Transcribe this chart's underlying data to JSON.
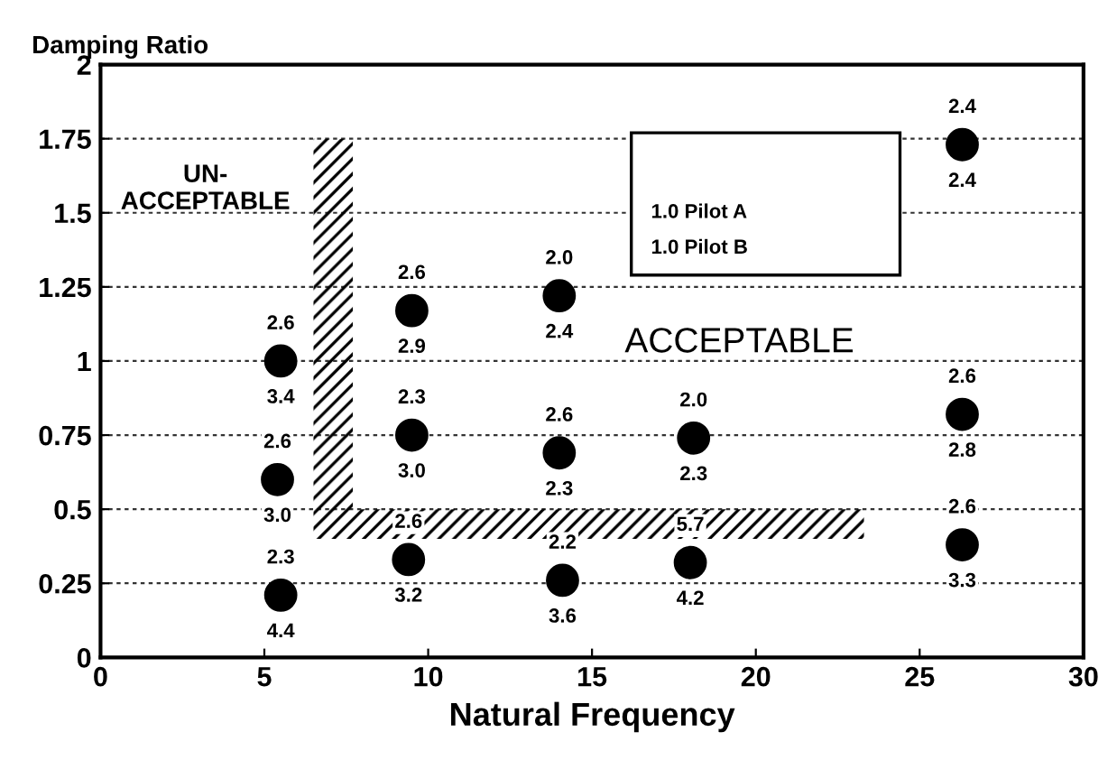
{
  "chart_data": {
    "type": "scatter",
    "xlabel": "Natural Frequency",
    "ylabel": "Damping Ratio",
    "x": [
      5.5,
      5.4,
      5.5,
      9.5,
      9.5,
      9.4,
      14.0,
      14.0,
      14.1,
      18.1,
      18.0,
      26.3,
      26.3,
      26.3
    ],
    "values": [
      1.0,
      0.6,
      0.21,
      1.17,
      0.75,
      0.33,
      1.22,
      0.69,
      0.26,
      0.74,
      0.32,
      1.73,
      0.82,
      0.38
    ],
    "color": "#000000",
    "marker": "circle",
    "annotations": [
      "UN-\nACCEPTABLE",
      "ACCEPTABLE",
      "1.0 Pilot A",
      "1.0 Pilot B",
      {
        "text": "2.6",
        "x": 5.5,
        "y": 1.0
      },
      {
        "text": "3.4",
        "x": 5.5,
        "y": 1.0
      },
      {
        "text": "2.6",
        "x": 5.4,
        "y": 0.6
      },
      {
        "text": "3.0",
        "x": 5.4,
        "y": 0.6
      },
      {
        "text": "2.3",
        "x": 5.5,
        "y": 0.21
      },
      {
        "text": "4.4",
        "x": 5.5,
        "y": 0.21
      },
      {
        "text": "2.6",
        "x": 9.5,
        "y": 1.17
      },
      {
        "text": "2.9",
        "x": 9.5,
        "y": 1.17
      },
      {
        "text": "2.3",
        "x": 9.5,
        "y": 0.75
      },
      {
        "text": "3.0",
        "x": 9.5,
        "y": 0.75
      },
      {
        "text": "2.6",
        "x": 9.4,
        "y": 0.33
      },
      {
        "text": "3.2",
        "x": 9.4,
        "y": 0.33
      },
      {
        "text": "2.0",
        "x": 14.0,
        "y": 1.22
      },
      {
        "text": "2.4",
        "x": 14.0,
        "y": 1.22
      },
      {
        "text": "2.6",
        "x": 14.0,
        "y": 0.69
      },
      {
        "text": "2.3",
        "x": 14.0,
        "y": 0.69
      },
      {
        "text": "2.2",
        "x": 14.1,
        "y": 0.26
      },
      {
        "text": "3.6",
        "x": 14.1,
        "y": 0.26
      },
      {
        "text": "2.0",
        "x": 18.1,
        "y": 0.74
      },
      {
        "text": "2.3",
        "x": 18.1,
        "y": 0.74
      },
      {
        "text": "5.7",
        "x": 18.0,
        "y": 0.32
      },
      {
        "text": "4.2",
        "x": 18.0,
        "y": 0.32
      },
      {
        "text": "2.4",
        "x": 26.3,
        "y": 1.73
      },
      {
        "text": "2.4",
        "x": 26.3,
        "y": 1.73
      },
      {
        "text": "2.6",
        "x": 26.3,
        "y": 0.82
      },
      {
        "text": "2.8",
        "x": 26.3,
        "y": 0.82
      },
      {
        "text": "2.6",
        "x": 26.3,
        "y": 0.38
      },
      {
        "text": "3.3",
        "x": 26.3,
        "y": 0.38
      }
    ],
    "xlim": [
      0,
      30
    ],
    "xticks": [
      0,
      5,
      10,
      15,
      20,
      25,
      30
    ],
    "ylim": [
      0,
      2
    ],
    "yticks": [
      0,
      0.25,
      0.5,
      0.75,
      1,
      1.25,
      1.5,
      1.75,
      2
    ],
    "grid": "y"
  }
}
